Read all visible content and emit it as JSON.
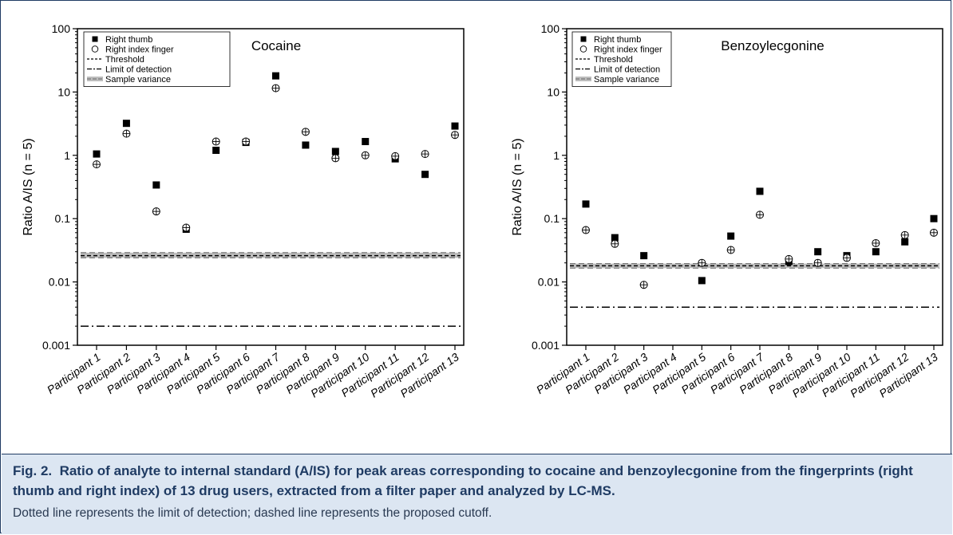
{
  "caption": {
    "label": "Fig. 2.",
    "title": "Ratio of analyte to internal standard (A/IS) for peak areas corresponding to cocaine and benzoylecgonine from the fingerprints (right thumb and right index) of 13 drug users, extracted from a filter paper and analyzed by LC-MS.",
    "note": "Dotted line represents the limit of detection; dashed line represents the proposed cutoff."
  },
  "chart_data": [
    {
      "type": "scatter",
      "title": "Cocaine",
      "xlabel": "",
      "ylabel": "Ratio A/IS (n = 5)",
      "yscale": "log",
      "ylim": [
        0.001,
        100
      ],
      "yticks": [
        0.001,
        0.01,
        0.1,
        1,
        10,
        100
      ],
      "ytick_labels": [
        "0.001",
        "0.01",
        "0.1",
        "1",
        "10",
        "100"
      ],
      "categories": [
        "Participant 1",
        "Participant 2",
        "Participant 3",
        "Participant 4",
        "Participant 5",
        "Participant 6",
        "Participant 7",
        "Participant 8",
        "Participant 9",
        "Participant 10",
        "Participant 11",
        "Participant 12",
        "Participant 13"
      ],
      "series": [
        {
          "name": "Right thumb",
          "marker": "filled-square",
          "values": [
            1.05,
            3.2,
            0.34,
            0.068,
            1.2,
            1.6,
            18,
            1.45,
            1.15,
            1.65,
            0.88,
            0.5,
            2.9
          ]
        },
        {
          "name": "Right index finger",
          "marker": "open-circle-cross",
          "values": [
            0.72,
            2.2,
            0.13,
            0.072,
            1.65,
            1.65,
            11.5,
            2.35,
            0.9,
            1.0,
            0.97,
            1.05,
            2.1
          ]
        }
      ],
      "lines": [
        {
          "name": "Threshold",
          "style": "dashed",
          "value": 0.026
        },
        {
          "name": "Limit of detection",
          "style": "dash-dot",
          "value": 0.002
        },
        {
          "name": "Sample variance",
          "style": "band",
          "low": 0.024,
          "high": 0.029
        }
      ],
      "legend": "top-left"
    },
    {
      "type": "scatter",
      "title": "Benzoylecgonine",
      "xlabel": "",
      "ylabel": "Ratio A/IS (n = 5)",
      "yscale": "log",
      "ylim": [
        0.001,
        100
      ],
      "yticks": [
        0.001,
        0.01,
        0.1,
        1,
        10,
        100
      ],
      "ytick_labels": [
        "0.001",
        "0.01",
        "0.1",
        "1",
        "10",
        "100"
      ],
      "categories": [
        "Participant 1",
        "Participant 2",
        "Participant 3",
        "Participant 4",
        "Participant 5",
        "Participant 6",
        "Participant 7",
        "Participant 8",
        "Participant 9",
        "Participant 10",
        "Participant 11",
        "Participant 12",
        "Participant 13"
      ],
      "series": [
        {
          "name": "Right thumb",
          "marker": "filled-square",
          "values": [
            0.17,
            0.05,
            0.026,
            null,
            0.0105,
            0.053,
            0.27,
            0.021,
            0.03,
            0.026,
            0.03,
            0.043,
            0.1
          ]
        },
        {
          "name": "Right index finger",
          "marker": "open-circle-cross",
          "values": [
            0.066,
            0.04,
            0.009,
            null,
            0.02,
            0.032,
            0.115,
            0.023,
            0.02,
            0.024,
            0.041,
            0.055,
            0.06
          ]
        }
      ],
      "lines": [
        {
          "name": "Threshold",
          "style": "dashed",
          "value": 0.018
        },
        {
          "name": "Limit of detection",
          "style": "dash-dot",
          "value": 0.004
        },
        {
          "name": "Sample variance",
          "style": "band",
          "low": 0.0165,
          "high": 0.0195
        }
      ],
      "legend": "top-left"
    }
  ]
}
